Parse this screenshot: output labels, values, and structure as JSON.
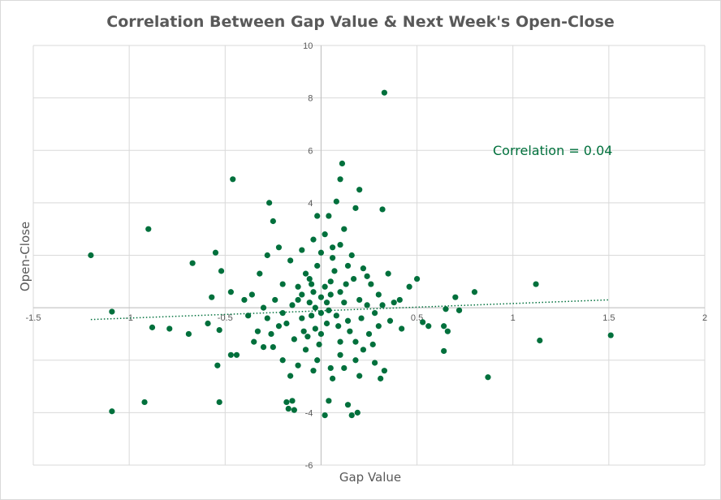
{
  "chart_data": {
    "type": "scatter",
    "title": "Correlation Between Gap Value & Next Week's Open-Close",
    "xlabel": "Gap Value",
    "ylabel": "Open-Close",
    "xlim": [
      -1.5,
      2
    ],
    "ylim": [
      -6,
      10
    ],
    "xticks": [
      -1.5,
      -1,
      -0.5,
      0,
      0.5,
      1,
      1.5,
      2
    ],
    "xtick_labels": [
      "-1.5",
      "-1",
      "-0.5",
      "",
      "0.5",
      "1",
      "1.5",
      "2"
    ],
    "yticks": [
      -6,
      -4,
      -2,
      0,
      2,
      4,
      6,
      8,
      10
    ],
    "ytick_labels": [
      "-6",
      "-4",
      "",
      "",
      "",
      "4",
      "6",
      "8",
      "10"
    ],
    "grid": true,
    "point_color": "#00703c",
    "annotation": {
      "text": "Correlation = 0.04",
      "color": "#00703c"
    },
    "trendline": {
      "style": "dotted",
      "color": "#00703c",
      "x": [
        -1.2,
        1.5
      ],
      "y": [
        -0.45,
        0.3
      ]
    },
    "series": [
      {
        "values": [
          [
            0.33,
            8.2
          ],
          [
            -0.46,
            4.9
          ],
          [
            -0.27,
            4.0
          ],
          [
            -0.9,
            3.0
          ],
          [
            -1.2,
            2.0
          ],
          [
            -0.55,
            2.1
          ],
          [
            -0.67,
            1.7
          ],
          [
            -0.52,
            1.4
          ],
          [
            -0.47,
            0.6
          ],
          [
            -0.57,
            0.4
          ],
          [
            -1.09,
            -0.15
          ],
          [
            -0.88,
            -0.75
          ],
          [
            -0.79,
            -0.8
          ],
          [
            -0.69,
            -1.0
          ],
          [
            -0.53,
            -0.85
          ],
          [
            -0.59,
            -0.6
          ],
          [
            -0.54,
            -2.2
          ],
          [
            -0.47,
            -1.8
          ],
          [
            -0.53,
            -3.6
          ],
          [
            -0.92,
            -3.6
          ],
          [
            -1.09,
            -3.95
          ],
          [
            0.11,
            5.5
          ],
          [
            0.1,
            4.9
          ],
          [
            0.2,
            4.5
          ],
          [
            0.08,
            4.05
          ],
          [
            0.18,
            3.8
          ],
          [
            0.32,
            3.75
          ],
          [
            0.5,
            1.1
          ],
          [
            0.46,
            0.8
          ],
          [
            0.7,
            0.4
          ],
          [
            0.8,
            0.6
          ],
          [
            0.56,
            -0.7
          ],
          [
            0.64,
            -0.7
          ],
          [
            0.66,
            -0.9
          ],
          [
            0.64,
            -1.65
          ],
          [
            1.12,
            0.9
          ],
          [
            1.14,
            -1.25
          ],
          [
            1.51,
            -1.05
          ],
          [
            0.87,
            -2.65
          ],
          [
            0.65,
            -0.05
          ],
          [
            0.72,
            -0.1
          ],
          [
            0.53,
            -0.55
          ],
          [
            0.31,
            -2.7
          ],
          [
            0.16,
            -4.1
          ],
          [
            0.19,
            -4.0
          ],
          [
            0.02,
            -4.1
          ],
          [
            0.14,
            -3.7
          ],
          [
            0.04,
            -3.55
          ],
          [
            -0.17,
            -3.85
          ],
          [
            -0.15,
            -3.55
          ],
          [
            -0.14,
            -3.9
          ],
          [
            -0.18,
            -3.6
          ],
          [
            0.35,
            1.3
          ],
          [
            0.41,
            0.3
          ],
          [
            0.38,
            0.2
          ],
          [
            0.36,
            -0.5
          ],
          [
            0.42,
            -0.8
          ],
          [
            0.3,
            -0.7
          ],
          [
            -0.4,
            0.3
          ],
          [
            -0.36,
            0.5
          ],
          [
            -0.38,
            -0.3
          ],
          [
            -0.33,
            -0.9
          ],
          [
            -0.3,
            -1.5
          ],
          [
            -0.44,
            -1.8
          ],
          [
            -0.35,
            -1.3
          ],
          [
            -0.32,
            1.3
          ],
          [
            -0.25,
            3.3
          ],
          [
            -0.28,
            2.0
          ],
          [
            -0.22,
            2.3
          ],
          [
            -0.04,
            2.6
          ],
          [
            0.02,
            2.8
          ],
          [
            0.04,
            3.5
          ],
          [
            -0.02,
            3.5
          ],
          [
            0.12,
            3.0
          ],
          [
            0.06,
            2.3
          ],
          [
            0.22,
            1.5
          ],
          [
            0.24,
            1.2
          ],
          [
            0.26,
            0.9
          ],
          [
            0.3,
            0.5
          ],
          [
            0.28,
            -0.2
          ],
          [
            0.25,
            -1.0
          ],
          [
            0.22,
            -1.6
          ],
          [
            0.28,
            -2.1
          ],
          [
            0.33,
            -2.4
          ],
          [
            0.2,
            -2.6
          ],
          [
            -0.12,
            -2.2
          ],
          [
            -0.2,
            -2.0
          ],
          [
            -0.25,
            -1.5
          ],
          [
            -0.22,
            -0.7
          ],
          [
            -0.28,
            -0.4
          ],
          [
            -0.15,
            0.1
          ],
          [
            -0.1,
            0.5
          ],
          [
            -0.05,
            0.9
          ],
          [
            0.05,
            1.0
          ],
          [
            0.1,
            0.6
          ],
          [
            0.12,
            0.2
          ],
          [
            0.08,
            -0.3
          ],
          [
            0.03,
            -0.6
          ],
          [
            -0.03,
            -0.8
          ],
          [
            -0.07,
            -1.1
          ],
          [
            -0.1,
            -0.4
          ],
          [
            -0.06,
            0.2
          ],
          [
            0.0,
            0.4
          ],
          [
            0.04,
            -0.1
          ],
          [
            0.15,
            -0.9
          ],
          [
            0.18,
            -1.3
          ],
          [
            0.1,
            -1.8
          ],
          [
            0.05,
            -2.3
          ],
          [
            -0.02,
            -2.0
          ],
          [
            -0.08,
            -1.6
          ],
          [
            -0.14,
            -1.2
          ],
          [
            -0.18,
            -0.6
          ],
          [
            -0.12,
            0.8
          ],
          [
            -0.08,
            1.3
          ],
          [
            -0.02,
            1.6
          ],
          [
            0.06,
            1.9
          ],
          [
            0.14,
            1.6
          ],
          [
            0.17,
            1.1
          ],
          [
            0.2,
            0.3
          ],
          [
            0.14,
            -0.5
          ],
          [
            -0.16,
            1.8
          ],
          [
            -0.1,
            2.2
          ],
          [
            0.0,
            2.1
          ],
          [
            0.1,
            2.4
          ],
          [
            0.16,
            2.0
          ],
          [
            -0.2,
            0.9
          ],
          [
            -0.24,
            0.3
          ],
          [
            -0.2,
            -0.2
          ],
          [
            0.24,
            0.1
          ],
          [
            0.21,
            -0.4
          ],
          [
            0.1,
            -1.3
          ],
          [
            -0.01,
            -1.4
          ],
          [
            -0.05,
            -0.3
          ],
          [
            0.02,
            0.8
          ],
          [
            0.07,
            1.4
          ],
          [
            -0.03,
            0.0
          ],
          [
            0.0,
            -0.2
          ],
          [
            0.03,
            0.2
          ],
          [
            -0.04,
            0.6
          ],
          [
            0.05,
            0.5
          ],
          [
            0.09,
            -0.7
          ],
          [
            -0.09,
            -0.9
          ],
          [
            -0.12,
            0.3
          ],
          [
            0.13,
            0.9
          ],
          [
            -0.06,
            1.1
          ],
          [
            0.18,
            -2.0
          ],
          [
            -0.16,
            -2.6
          ],
          [
            0.06,
            -2.7
          ],
          [
            -0.04,
            -2.4
          ],
          [
            0.12,
            -2.3
          ],
          [
            -0.26,
            -1.0
          ],
          [
            0.27,
            -1.4
          ],
          [
            0.32,
            0.1
          ],
          [
            -0.3,
            0.0
          ],
          [
            0.0,
            -1.0
          ]
        ]
      }
    ]
  }
}
